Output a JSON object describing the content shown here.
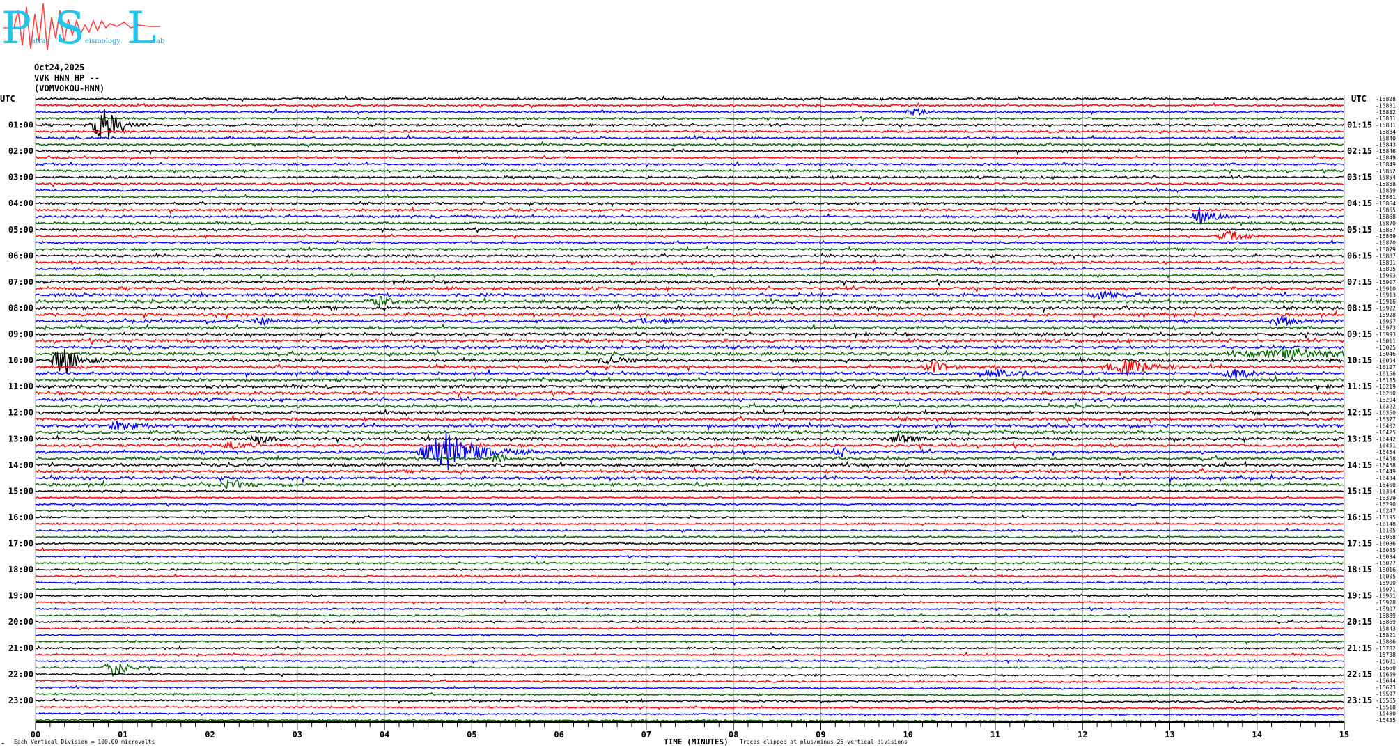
{
  "logo": {
    "text": "Patras Seismology Lab",
    "letters": [
      "P",
      "S",
      "L"
    ],
    "small": [
      "atras",
      "eismology",
      "ab"
    ],
    "letter_color": "#22c4e8",
    "wave_color": "#ff4444"
  },
  "header": {
    "date": "Oct24,2025",
    "station": "VVK HNN HP --",
    "site": "(VOMVOKOU-HNN)"
  },
  "chart_data": {
    "type": "line",
    "title": "",
    "xlabel": "TIME (MINUTES)",
    "xlim": [
      0,
      15
    ],
    "x_ticks": [
      "00",
      "01",
      "02",
      "03",
      "04",
      "05",
      "06",
      "07",
      "08",
      "09",
      "10",
      "11",
      "12",
      "13",
      "14",
      "15"
    ],
    "left_axis_label": "UTC",
    "right_axis_label": "UTC",
    "left_hour_labels": [
      "01:00",
      "02:00",
      "03:00",
      "04:00",
      "05:00",
      "06:00",
      "07:00",
      "08:00",
      "09:00",
      "10:00",
      "11:00",
      "12:00",
      "13:00",
      "14:00",
      "15:00",
      "16:00",
      "17:00",
      "18:00",
      "19:00",
      "20:00",
      "21:00",
      "22:00",
      "23:00"
    ],
    "right_hour_labels": [
      "01:15",
      "02:15",
      "03:15",
      "04:15",
      "05:15",
      "06:15",
      "07:15",
      "08:15",
      "09:15",
      "10:15",
      "11:15",
      "12:15",
      "13:15",
      "14:15",
      "15:15",
      "16:15",
      "17:15",
      "18:15",
      "19:15",
      "20:15",
      "21:15",
      "22:15",
      "23:15"
    ],
    "trace_colors": [
      "#000000",
      "#ff0000",
      "#0000ff",
      "#006400"
    ],
    "trace_offsets": [
      -15828,
      -15831,
      -15832,
      -15831,
      -15831,
      -15834,
      -15840,
      -15843,
      -15846,
      -15849,
      -15849,
      -15852,
      -15854,
      -15858,
      -15859,
      -15861,
      -15864,
      -15865,
      -15868,
      -15870,
      -15867,
      -15869,
      -15870,
      -15879,
      -15887,
      -15891,
      -15895,
      -15903,
      -15907,
      -15910,
      -15913,
      -15916,
      -15922,
      -15928,
      -15957,
      -15973,
      -15993,
      -16011,
      -16025,
      -16046,
      -16094,
      -16127,
      -16156,
      -16185,
      -16219,
      -16260,
      -16294,
      -16322,
      -16350,
      -16377,
      -16402,
      -16425,
      -16442,
      -16451,
      -16454,
      -16458,
      -16458,
      -16449,
      -16434,
      -16400,
      -16364,
      -16329,
      -16290,
      -16247,
      -16195,
      -16148,
      -16105,
      -16068,
      -16036,
      -16035,
      -16034,
      -16027,
      -16016,
      -16005,
      -15990,
      -15971,
      -15951,
      -15928,
      -15907,
      -15889,
      -15869,
      -15843,
      -15821,
      -15806,
      -15782,
      -15738,
      -15681,
      -15660,
      -15659,
      -15644,
      -15623,
      -15597,
      -15565,
      -15518,
      -15480,
      -15435
    ],
    "events": [
      {
        "row_start": "01:00",
        "minute": 0.79,
        "amplitude": 30,
        "duration": 0.18
      },
      {
        "row_start": "00:30",
        "minute": 10.1,
        "amplitude": 4,
        "duration": 0.15
      },
      {
        "row_start": "10:00",
        "minute": 0.33,
        "amplitude": 20,
        "duration": 0.2
      },
      {
        "row_start": "10:15",
        "minute": 12.5,
        "amplitude": 10,
        "duration": 0.3
      },
      {
        "row_start": "10:15",
        "minute": 10.3,
        "amplitude": 6,
        "duration": 0.2
      },
      {
        "row_start": "04:30",
        "minute": 13.37,
        "amplitude": 12,
        "duration": 0.15
      },
      {
        "row_start": "05:15",
        "minute": 13.7,
        "amplitude": 7,
        "duration": 0.2
      },
      {
        "row_start": "08:30",
        "minute": 14.27,
        "amplitude": 8,
        "duration": 0.15
      },
      {
        "row_start": "07:30",
        "minute": 12.2,
        "amplitude": 7,
        "duration": 0.15
      },
      {
        "row_start": "12:30",
        "minute": 0.97,
        "amplitude": 8,
        "duration": 0.15
      },
      {
        "row_start": "13:30",
        "minute": 4.7,
        "amplitude": 30,
        "duration": 0.35
      },
      {
        "row_start": "13:00",
        "minute": 9.9,
        "amplitude": 8,
        "duration": 0.15
      },
      {
        "row_start": "13:15",
        "minute": 2.25,
        "amplitude": 6,
        "duration": 0.15
      },
      {
        "row_start": "13:00",
        "minute": 2.6,
        "amplitude": 6,
        "duration": 0.15
      },
      {
        "row_start": "13:45",
        "minute": 5.3,
        "amplitude": 6,
        "duration": 0.15
      },
      {
        "row_start": "13:30",
        "minute": 9.22,
        "amplitude": 6,
        "duration": 0.15
      },
      {
        "row_start": "14:45",
        "minute": 2.25,
        "amplitude": 6,
        "duration": 0.15
      },
      {
        "row_start": "21:45",
        "minute": 0.9,
        "amplitude": 14,
        "duration": 0.15
      },
      {
        "row_start": "10:30",
        "minute": 13.75,
        "amplitude": 10,
        "duration": 0.15
      },
      {
        "row_start": "10:30",
        "minute": 11.0,
        "amplitude": 5,
        "duration": 0.3
      },
      {
        "row_start": "09:45",
        "minute": 14.4,
        "amplitude": 6,
        "duration": 0.8
      },
      {
        "row_start": "08:30",
        "minute": 2.6,
        "amplitude": 5,
        "duration": 0.15
      },
      {
        "row_start": "08:30",
        "minute": 7.05,
        "amplitude": 5,
        "duration": 0.2
      },
      {
        "row_start": "07:45",
        "minute": 3.95,
        "amplitude": 6,
        "duration": 0.2
      },
      {
        "row_start": "10:00",
        "minute": 6.6,
        "amplitude": 5,
        "duration": 0.2
      }
    ],
    "grid": true
  },
  "footer": {
    "scale_note": "Each Vertical Division =  100.00 microvolts",
    "time_label": "TIME (MINUTES)",
    "clip_note": "Traces clipped at plus/minus 25 vertical divisions"
  }
}
